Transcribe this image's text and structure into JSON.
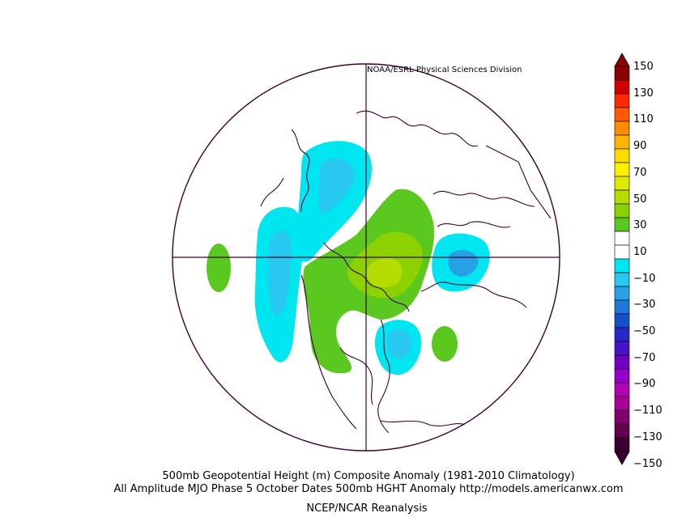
{
  "header": {
    "credit": "NOAA/ESRL Physical Sciences Division"
  },
  "captions": {
    "line1": "500mb Geopotential Height (m) Composite Anomaly (1981-2010 Climatology)",
    "line2": "All Amplitude MJO Phase 5 October Dates 500mb HGHT Anomaly http://models.americanwx.com",
    "line3": "NCEP/NCAR Reanalysis"
  },
  "colorbar": {
    "labels": [
      "150",
      "130",
      "110",
      "90",
      "70",
      "50",
      "30",
      "10",
      "−10",
      "−30",
      "−50",
      "−70",
      "−90",
      "−110",
      "−130",
      "−150"
    ],
    "colors": [
      "#8b0000",
      "#d20000",
      "#ff2800",
      "#ff5a00",
      "#ff8c00",
      "#ffb400",
      "#ffdc00",
      "#fff000",
      "#dcec00",
      "#b4dc00",
      "#8cd200",
      "#5ac81e",
      "#ffffff",
      "#ffffff",
      "#00e6f0",
      "#28c8f0",
      "#28a0e6",
      "#1e78dc",
      "#1450c8",
      "#2828c8",
      "#4614c8",
      "#6e00c8",
      "#9600c8",
      "#b400b4",
      "#aa0096",
      "#82006e",
      "#640050",
      "#3c0032"
    ],
    "units": "m"
  },
  "map": {
    "projection": "north polar stereographic",
    "anomaly_regions": [
      {
        "region": "north-pacific-aleutians",
        "sign": "negative",
        "level": -20
      },
      {
        "region": "arctic-siberia",
        "sign": "negative",
        "level": -20
      },
      {
        "region": "alaska-western-canada",
        "sign": "positive",
        "level": 30
      },
      {
        "region": "hudson-bay-canada",
        "sign": "positive",
        "level": 40
      },
      {
        "region": "western-us",
        "sign": "positive",
        "level": 20
      },
      {
        "region": "eastern-us",
        "sign": "negative",
        "level": -30
      },
      {
        "region": "ural-caspian",
        "sign": "negative",
        "level": -30
      },
      {
        "region": "north-atlantic",
        "sign": "positive",
        "level": 20
      },
      {
        "region": "central-pacific",
        "sign": "positive",
        "level": 20
      }
    ]
  }
}
